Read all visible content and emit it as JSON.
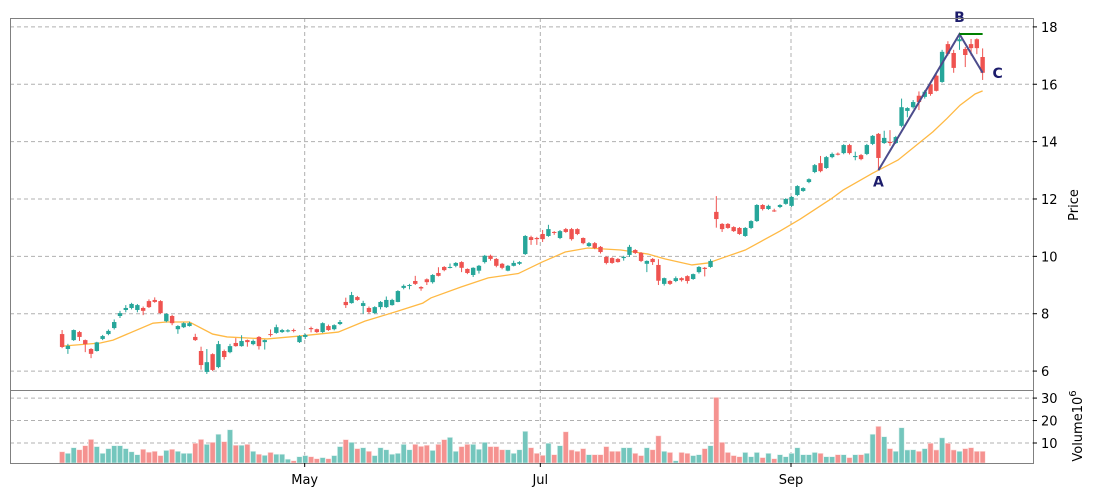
{
  "chart_data": {
    "type": "candlestick",
    "price_panel": {
      "ylabel": "Price",
      "ylim": [
        5.34,
        18.31
      ],
      "yticks": [
        6,
        8,
        10,
        12,
        14,
        16,
        18
      ],
      "grid": true
    },
    "volume_panel": {
      "ylabel": "Volume",
      "ylabel_exponent": "10",
      "ylabel_power": "6",
      "ylim": [
        1.1,
        33.6
      ],
      "yticks": [
        10,
        20,
        30
      ],
      "grid": true
    },
    "xlim": [
      -9,
      167.7
    ],
    "xticks": [
      {
        "label": "May",
        "index": 41.9
      },
      {
        "label": "Jul",
        "index": 82.6
      },
      {
        "label": "Sep",
        "index": 125.9
      }
    ],
    "colors": {
      "up": "#26a69a",
      "down": "#ef5350",
      "volume_up": "#74c6bd",
      "volume_down": "#f59290",
      "moving_average": "#ffb944",
      "pattern_line": "#4c4c8c",
      "annotation_text": "#1c1c6b",
      "level_line": "#008000"
    },
    "ohlcv_fields": [
      "open",
      "high",
      "low",
      "close",
      "volume"
    ],
    "candles": [
      [
        7.29,
        7.43,
        6.8,
        6.84,
        6.1
      ],
      [
        6.77,
        6.95,
        6.6,
        6.88,
        5.4
      ],
      [
        7.08,
        7.45,
        7.05,
        7.43,
        7.9
      ],
      [
        7.36,
        7.4,
        7.05,
        7.19,
        7.0
      ],
      [
        7.08,
        7.1,
        6.66,
        6.94,
        8.8
      ],
      [
        6.77,
        6.8,
        6.45,
        6.6,
        11.6
      ],
      [
        6.7,
        7.02,
        6.68,
        7.0,
        8.4
      ],
      [
        7.12,
        7.26,
        7.08,
        7.22,
        5.4
      ],
      [
        7.29,
        7.45,
        7.25,
        7.4,
        7.5
      ],
      [
        7.5,
        7.8,
        7.45,
        7.71,
        8.8
      ],
      [
        7.92,
        8.1,
        7.85,
        8.02,
        8.8
      ],
      [
        8.13,
        8.3,
        8.05,
        8.2,
        7.5
      ],
      [
        8.2,
        8.38,
        8.15,
        8.34,
        6.1
      ],
      [
        8.13,
        8.34,
        8.05,
        8.3,
        4.8
      ],
      [
        8.2,
        8.25,
        7.95,
        8.1,
        7.2
      ],
      [
        8.44,
        8.5,
        8.2,
        8.23,
        5.9
      ],
      [
        8.48,
        8.57,
        8.38,
        8.41,
        6.3
      ],
      [
        8.44,
        8.47,
        8.0,
        8.02,
        4.4
      ],
      [
        7.74,
        8.02,
        7.7,
        7.99,
        6.7
      ],
      [
        7.92,
        7.96,
        7.6,
        7.67,
        7.2
      ],
      [
        7.46,
        7.6,
        7.3,
        7.57,
        6.3
      ],
      [
        7.53,
        7.7,
        7.5,
        7.67,
        5.4
      ],
      [
        7.57,
        7.72,
        7.55,
        7.67,
        5.4
      ],
      [
        7.19,
        7.3,
        7.05,
        7.08,
        9.9
      ],
      [
        6.7,
        6.85,
        6.05,
        6.21,
        11.6
      ],
      [
        5.97,
        6.77,
        5.9,
        6.31,
        9.4
      ],
      [
        6.59,
        6.62,
        6.0,
        6.04,
        10.3
      ],
      [
        6.14,
        7.05,
        6.1,
        6.94,
        13.9
      ],
      [
        6.7,
        6.75,
        6.4,
        6.49,
        10.6
      ],
      [
        6.66,
        6.95,
        6.62,
        6.87,
        15.9
      ],
      [
        6.98,
        7.15,
        6.85,
        6.87,
        9.0
      ],
      [
        6.87,
        7.25,
        6.85,
        7.05,
        9.0
      ],
      [
        7.08,
        7.1,
        6.85,
        7.01,
        9.4
      ],
      [
        6.94,
        7.1,
        6.9,
        7.05,
        6.3
      ],
      [
        7.19,
        7.22,
        6.75,
        6.87,
        5.0
      ],
      [
        7.01,
        7.1,
        6.75,
        7.08,
        4.5
      ],
      [
        7.29,
        7.45,
        7.2,
        7.26,
        5.8
      ],
      [
        7.33,
        7.62,
        7.3,
        7.53,
        5.0
      ],
      [
        7.36,
        7.47,
        7.33,
        7.43,
        5.0
      ],
      [
        7.38,
        7.46,
        7.35,
        7.42,
        2.8
      ],
      [
        7.43,
        7.48,
        7.35,
        7.4,
        2.1
      ],
      [
        7.01,
        7.25,
        6.98,
        7.22,
        3.9
      ],
      [
        7.19,
        7.3,
        7.12,
        7.26,
        4.4
      ],
      [
        7.5,
        7.55,
        7.35,
        7.46,
        3.9
      ],
      [
        7.46,
        7.48,
        7.33,
        7.36,
        3.0
      ],
      [
        7.36,
        7.7,
        7.33,
        7.67,
        3.5
      ],
      [
        7.57,
        7.62,
        7.4,
        7.43,
        3.0
      ],
      [
        7.46,
        7.63,
        7.42,
        7.6,
        4.4
      ],
      [
        7.64,
        7.78,
        7.6,
        7.71,
        8.4
      ],
      [
        8.41,
        8.56,
        8.2,
        8.3,
        11.5
      ],
      [
        8.37,
        8.76,
        8.35,
        8.65,
        10.3
      ],
      [
        8.58,
        8.62,
        8.45,
        8.48,
        7.5
      ],
      [
        8.27,
        8.45,
        8.0,
        8.37,
        7.9
      ],
      [
        8.2,
        8.25,
        8.0,
        8.06,
        6.3
      ],
      [
        8.02,
        8.26,
        8.0,
        8.23,
        4.4
      ],
      [
        8.23,
        8.44,
        8.15,
        8.41,
        7.9
      ],
      [
        8.23,
        8.6,
        8.2,
        8.48,
        7.0
      ],
      [
        8.3,
        8.52,
        8.28,
        8.48,
        5.0
      ],
      [
        8.41,
        8.82,
        8.4,
        8.79,
        5.4
      ],
      [
        8.9,
        9.02,
        8.85,
        8.97,
        9.4
      ],
      [
        8.97,
        9.04,
        8.85,
        9.0,
        7.0
      ],
      [
        9.14,
        9.32,
        9.0,
        9.04,
        9.4
      ],
      [
        8.93,
        8.96,
        8.8,
        8.88,
        8.5
      ],
      [
        9.2,
        9.23,
        9.0,
        9.1,
        9.0
      ],
      [
        9.1,
        9.38,
        9.05,
        9.35,
        6.7
      ],
      [
        9.42,
        9.62,
        9.3,
        9.32,
        9.4
      ],
      [
        9.63,
        9.66,
        9.48,
        9.52,
        11.5
      ],
      [
        9.6,
        9.75,
        9.58,
        9.63,
        12.5
      ],
      [
        9.67,
        9.8,
        9.62,
        9.77,
        6.3
      ],
      [
        9.8,
        9.83,
        9.45,
        9.6,
        8.4
      ],
      [
        9.56,
        9.58,
        9.38,
        9.42,
        9.4
      ],
      [
        9.35,
        9.62,
        9.28,
        9.6,
        9.4
      ],
      [
        9.5,
        9.7,
        9.4,
        9.67,
        7.2
      ],
      [
        9.8,
        10.05,
        9.75,
        10.02,
        10.3
      ],
      [
        10.02,
        10.06,
        9.85,
        9.91,
        8.4
      ],
      [
        9.91,
        9.94,
        9.62,
        9.67,
        8.4
      ],
      [
        9.74,
        9.77,
        9.55,
        9.6,
        7.0
      ],
      [
        9.5,
        9.7,
        9.48,
        9.67,
        7.0
      ],
      [
        9.67,
        9.85,
        9.65,
        9.77,
        5.4
      ],
      [
        9.74,
        9.83,
        9.7,
        9.8,
        7.0
      ],
      [
        10.08,
        10.74,
        10.05,
        10.71,
        15.2
      ],
      [
        10.67,
        10.72,
        10.4,
        10.57,
        7.9
      ],
      [
        10.64,
        10.68,
        10.4,
        10.6,
        5.4
      ],
      [
        10.78,
        10.92,
        10.5,
        10.6,
        4.5
      ],
      [
        10.71,
        11.1,
        10.68,
        10.95,
        9.9
      ],
      [
        10.85,
        10.88,
        10.75,
        10.82,
        4.8
      ],
      [
        10.64,
        10.92,
        10.6,
        10.88,
        8.8
      ],
      [
        10.95,
        10.99,
        10.82,
        10.85,
        15.0
      ],
      [
        10.95,
        10.99,
        10.55,
        10.6,
        6.9
      ],
      [
        10.95,
        10.98,
        10.74,
        10.78,
        6.3
      ],
      [
        10.64,
        10.66,
        10.42,
        10.46,
        7.5
      ],
      [
        10.36,
        10.5,
        10.33,
        10.46,
        4.8
      ],
      [
        10.46,
        10.5,
        10.25,
        10.29,
        4.8
      ],
      [
        10.33,
        10.36,
        10.1,
        10.15,
        4.8
      ],
      [
        9.98,
        10.0,
        9.72,
        9.77,
        8.4
      ],
      [
        9.94,
        9.97,
        9.74,
        9.77,
        6.3
      ],
      [
        9.91,
        9.94,
        9.78,
        9.8,
        6.3
      ],
      [
        9.94,
        10.02,
        9.85,
        9.98,
        7.9
      ],
      [
        10.05,
        10.4,
        9.98,
        10.33,
        7.9
      ],
      [
        10.22,
        10.25,
        10.08,
        10.12,
        5.4
      ],
      [
        10.12,
        10.15,
        9.8,
        9.84,
        4.4
      ],
      [
        9.74,
        9.86,
        9.45,
        9.84,
        7.9
      ],
      [
        9.91,
        9.94,
        9.7,
        9.8,
        7.0
      ],
      [
        9.7,
        9.9,
        9.0,
        9.15,
        13.2
      ],
      [
        9.04,
        9.26,
        8.98,
        9.24,
        6.3
      ],
      [
        9.14,
        9.17,
        9.0,
        9.04,
        5.8
      ],
      [
        9.14,
        9.3,
        9.1,
        9.24,
        2.1
      ],
      [
        9.24,
        9.27,
        9.12,
        9.17,
        5.8
      ],
      [
        9.31,
        9.34,
        9.05,
        9.14,
        5.4
      ],
      [
        9.21,
        9.4,
        9.18,
        9.38,
        4.4
      ],
      [
        9.45,
        9.66,
        9.4,
        9.63,
        4.8
      ],
      [
        9.6,
        9.63,
        9.3,
        9.56,
        7.5
      ],
      [
        9.63,
        9.9,
        9.6,
        9.84,
        8.8
      ],
      [
        11.55,
        12.1,
        11.0,
        11.3,
        30.3
      ],
      [
        11.13,
        11.16,
        10.85,
        10.95,
        10.3
      ],
      [
        11.13,
        11.16,
        10.96,
        10.99,
        5.8
      ],
      [
        11.02,
        11.05,
        10.85,
        10.88,
        4.4
      ],
      [
        10.99,
        11.02,
        10.75,
        10.78,
        3.9
      ],
      [
        10.71,
        11.02,
        10.68,
        10.99,
        5.8
      ],
      [
        10.99,
        11.26,
        10.95,
        11.23,
        3.9
      ],
      [
        11.23,
        11.82,
        11.2,
        11.79,
        5.8
      ],
      [
        11.79,
        11.82,
        11.6,
        11.65,
        3.5
      ],
      [
        11.65,
        11.8,
        11.62,
        11.76,
        5.4
      ],
      [
        11.6,
        11.66,
        11.55,
        11.58,
        3.0
      ],
      [
        11.72,
        11.82,
        11.68,
        11.79,
        4.8
      ],
      [
        11.83,
        12.03,
        11.8,
        12.0,
        3.9
      ],
      [
        11.76,
        12.1,
        11.72,
        12.07,
        5.4
      ],
      [
        12.14,
        12.48,
        12.1,
        12.45,
        7.9
      ],
      [
        12.28,
        12.41,
        12.25,
        12.38,
        4.8
      ],
      [
        12.59,
        12.72,
        12.55,
        12.69,
        4.8
      ],
      [
        12.94,
        13.22,
        12.9,
        13.18,
        5.8
      ],
      [
        13.25,
        13.5,
        12.93,
        12.97,
        5.4
      ],
      [
        13.08,
        13.5,
        13.05,
        13.46,
        3.9
      ],
      [
        13.46,
        13.62,
        13.42,
        13.57,
        3.9
      ],
      [
        13.58,
        13.62,
        13.52,
        13.55,
        4.8
      ],
      [
        13.6,
        13.91,
        13.56,
        13.88,
        4.8
      ],
      [
        13.88,
        13.92,
        13.55,
        13.6,
        3.5
      ],
      [
        13.46,
        13.65,
        13.35,
        13.5,
        4.8
      ],
      [
        13.53,
        13.57,
        13.35,
        13.39,
        4.8
      ],
      [
        13.57,
        13.92,
        13.53,
        13.88,
        5.4
      ],
      [
        13.92,
        14.23,
        13.88,
        14.2,
        13.9
      ],
      [
        14.27,
        14.3,
        13.0,
        13.43,
        17.4
      ],
      [
        13.95,
        14.38,
        13.92,
        14.13,
        12.8
      ],
      [
        13.99,
        14.4,
        13.85,
        13.95,
        7.5
      ],
      [
        13.95,
        14.2,
        13.92,
        14.16,
        6.3
      ],
      [
        14.55,
        15.5,
        14.5,
        15.2,
        16.8
      ],
      [
        15.07,
        15.2,
        14.85,
        15.17,
        6.9
      ],
      [
        15.2,
        15.45,
        15.15,
        15.38,
        7.0
      ],
      [
        15.6,
        15.75,
        15.1,
        15.38,
        6.3
      ],
      [
        15.56,
        15.8,
        15.5,
        15.74,
        7.5
      ],
      [
        16.0,
        16.1,
        15.6,
        15.66,
        9.9
      ],
      [
        16.3,
        16.35,
        15.75,
        15.77,
        6.9
      ],
      [
        16.08,
        17.2,
        16.05,
        17.13,
        12.3
      ],
      [
        17.4,
        17.5,
        17.0,
        17.06,
        9.9
      ],
      [
        17.09,
        17.2,
        16.4,
        16.57,
        6.9
      ],
      [
        17.5,
        17.75,
        17.2,
        17.57,
        6.3
      ],
      [
        17.23,
        17.3,
        16.6,
        17.02,
        7.5
      ],
      [
        17.4,
        17.58,
        17.0,
        17.26,
        7.9
      ],
      [
        17.57,
        17.6,
        17.05,
        17.26,
        6.3
      ],
      [
        16.95,
        17.25,
        16.15,
        16.4,
        6.3
      ]
    ],
    "moving_average": [
      [
        0,
        6.87
      ],
      [
        6.6,
        6.98
      ],
      [
        8.8,
        7.08
      ],
      [
        15.7,
        7.67
      ],
      [
        18,
        7.71
      ],
      [
        22,
        7.71
      ],
      [
        26,
        7.29
      ],
      [
        28.5,
        7.19
      ],
      [
        35.4,
        7.12
      ],
      [
        41,
        7.22
      ],
      [
        47.7,
        7.36
      ],
      [
        52.3,
        7.74
      ],
      [
        57.5,
        8.06
      ],
      [
        62.3,
        8.37
      ],
      [
        63.7,
        8.55
      ],
      [
        68.9,
        8.93
      ],
      [
        73.6,
        9.25
      ],
      [
        78.8,
        9.4
      ],
      [
        82.9,
        9.8
      ],
      [
        86.9,
        10.15
      ],
      [
        90.8,
        10.29
      ],
      [
        96.5,
        10.22
      ],
      [
        101.2,
        10.08
      ],
      [
        104.1,
        9.91
      ],
      [
        108.8,
        9.7
      ],
      [
        111.6,
        9.77
      ],
      [
        114,
        9.94
      ],
      [
        118,
        10.22
      ],
      [
        124,
        10.88
      ],
      [
        127.5,
        11.3
      ],
      [
        132.8,
        12.0
      ],
      [
        134.9,
        12.31
      ],
      [
        140,
        12.9
      ],
      [
        144.4,
        13.36
      ],
      [
        150.4,
        14.34
      ],
      [
        152.8,
        14.8
      ],
      [
        155.1,
        15.27
      ],
      [
        157.7,
        15.66
      ],
      [
        159,
        15.77
      ]
    ],
    "annotations": [
      {
        "label": "A",
        "index": 141,
        "price": 13.0
      },
      {
        "label": "B",
        "index": 155,
        "price": 17.75
      },
      {
        "label": "C",
        "index": 159,
        "price": 16.4
      }
    ],
    "level_line": {
      "from_index": 155,
      "to_index": 159,
      "price": 17.75
    }
  }
}
